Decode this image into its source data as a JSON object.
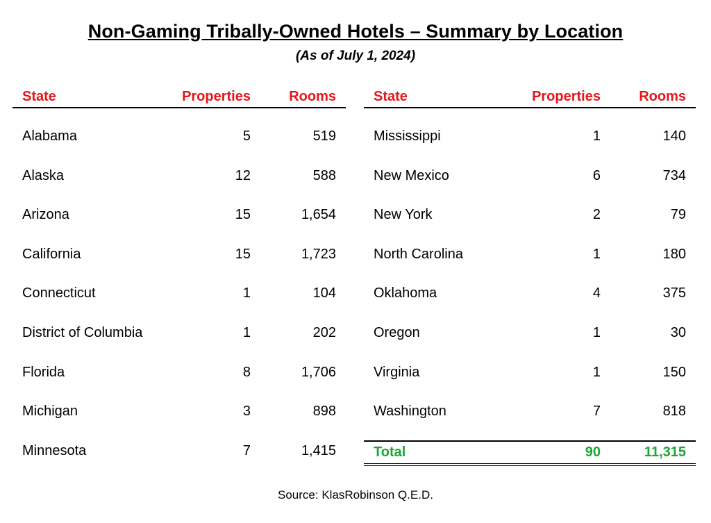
{
  "title": "Non-Gaming Tribally-Owned Hotels – Summary by Location",
  "subtitle": "(As of July 1, 2024)",
  "headers": {
    "state": "State",
    "properties": "Properties",
    "rooms": "Rooms"
  },
  "left_rows": [
    {
      "state": "Alabama",
      "properties": "5",
      "rooms": "519"
    },
    {
      "state": "Alaska",
      "properties": "12",
      "rooms": "588"
    },
    {
      "state": "Arizona",
      "properties": "15",
      "rooms": "1,654"
    },
    {
      "state": "California",
      "properties": "15",
      "rooms": "1,723"
    },
    {
      "state": "Connecticut",
      "properties": "1",
      "rooms": "104"
    },
    {
      "state": "District of Columbia",
      "properties": "1",
      "rooms": "202"
    },
    {
      "state": "Florida",
      "properties": "8",
      "rooms": "1,706"
    },
    {
      "state": "Michigan",
      "properties": "3",
      "rooms": "898"
    },
    {
      "state": "Minnesota",
      "properties": "7",
      "rooms": "1,415"
    }
  ],
  "right_rows": [
    {
      "state": "Mississippi",
      "properties": "1",
      "rooms": "140"
    },
    {
      "state": "New Mexico",
      "properties": "6",
      "rooms": "734"
    },
    {
      "state": "New York",
      "properties": "2",
      "rooms": "79"
    },
    {
      "state": "North Carolina",
      "properties": "1",
      "rooms": "180"
    },
    {
      "state": "Oklahoma",
      "properties": "4",
      "rooms": "375"
    },
    {
      "state": "Oregon",
      "properties": "1",
      "rooms": "30"
    },
    {
      "state": "Virginia",
      "properties": "1",
      "rooms": "150"
    },
    {
      "state": "Washington",
      "properties": "7",
      "rooms": "818"
    }
  ],
  "total": {
    "label": "Total",
    "properties": "90",
    "rooms": "11,315"
  },
  "source": "Source: KlasRobinson Q.E.D.",
  "colors": {
    "header": "#e8141a",
    "total": "#1fa535"
  }
}
